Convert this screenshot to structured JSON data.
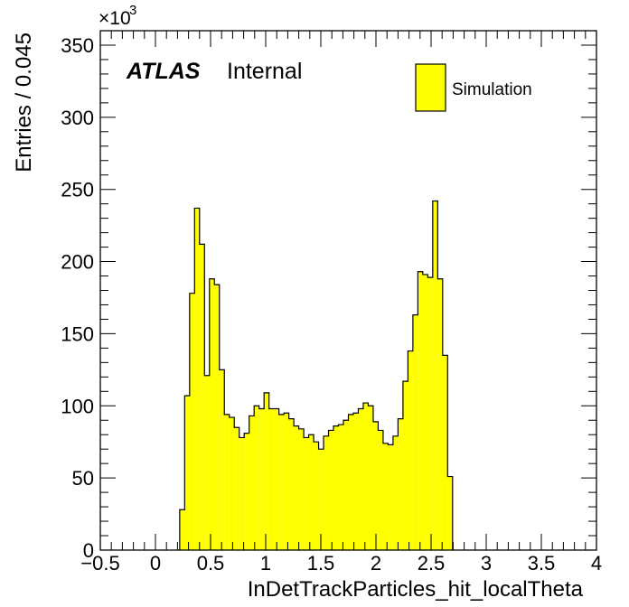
{
  "chart_data": {
    "type": "histogram",
    "xlabel": "InDetTrackParticles_hit_localTheta",
    "ylabel": "Entries / 0.045",
    "xlim": [
      -0.5,
      4.0
    ],
    "ylim": [
      0,
      360
    ],
    "y_multiplier": "×10",
    "y_multiplier_exp": "3",
    "x_ticks": [
      -0.5,
      0,
      0.5,
      1,
      1.5,
      2,
      2.5,
      3,
      3.5,
      4
    ],
    "x_tick_labels": [
      "−0.5",
      "0",
      "0.5",
      "1",
      "1.5",
      "2",
      "2.5",
      "3",
      "3.5",
      "4"
    ],
    "y_ticks": [
      0,
      50,
      100,
      150,
      200,
      250,
      300,
      350
    ],
    "y_tick_labels": [
      "0",
      "50",
      "100",
      "150",
      "200",
      "250",
      "300",
      "350"
    ],
    "bin_width": 0.045,
    "bin_start": 0.22,
    "values": [
      28,
      107,
      178,
      237,
      212,
      121,
      188,
      184,
      125,
      94,
      92,
      85,
      78,
      81,
      93,
      100,
      98,
      109,
      98,
      98,
      94,
      95,
      91,
      86,
      84,
      78,
      80,
      75,
      70,
      79,
      83,
      86,
      87,
      90,
      94,
      95,
      98,
      102,
      100,
      89,
      83,
      74,
      73,
      79,
      91,
      117,
      138,
      163,
      193,
      191,
      189,
      242,
      188,
      135,
      51
    ],
    "fill_color": "#ffff00",
    "edge_color": "#000000",
    "series": [
      {
        "name": "Simulation",
        "color": "#ffff00"
      }
    ],
    "legend_position": "top-right",
    "label_prefix": "ATLAS",
    "label_suffix": "Internal"
  }
}
